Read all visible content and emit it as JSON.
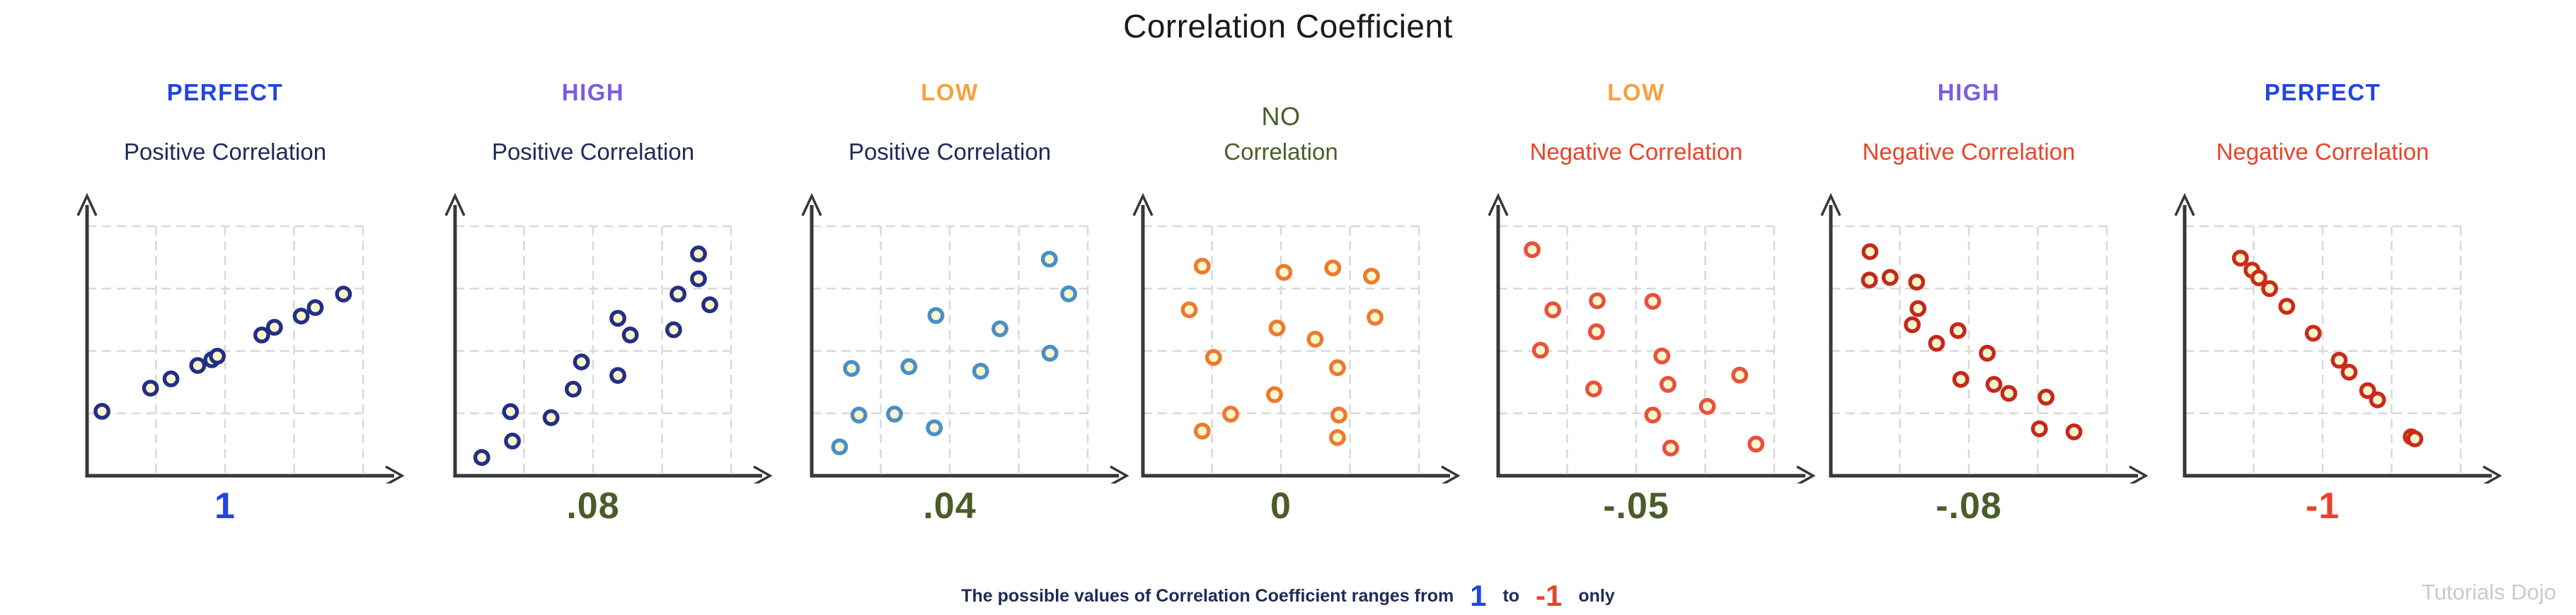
{
  "title": "Correlation Coefficient",
  "watermark": "Tutorials Dojo",
  "colors": {
    "title_text": "#1b1b1b",
    "accent_blue": "#2244e0",
    "accent_purple": "#7b5be8",
    "accent_orange": "#f5a23c",
    "accent_olive": "#4a5d28",
    "navy_text": "#1e2b58",
    "negative_red": "#e8442b",
    "dot_fill": "#faf7ce",
    "dot_navy": "#232f85",
    "dot_steel_blue": "#4a8fc5",
    "dot_orange": "#ec7a2e",
    "dot_tomato": "#e8513c",
    "dot_dark_red": "#c5281c",
    "dot_red": "#cb2a1a",
    "grid": "#d9d9d9",
    "axis": "#33383d",
    "watermark_gray": "#cacaca"
  },
  "footnote": {
    "prefix": "The possible values of Correlation Coefficient ranges from",
    "value_high": "1",
    "middle": "to",
    "value_low": "-1",
    "suffix": "only"
  },
  "chart_data": {
    "type": "scatter",
    "title": "Correlation Coefficient",
    "axes": {
      "x_range": [
        0,
        1
      ],
      "y_range": [
        0,
        1
      ],
      "tick_labels": "none",
      "grid": "4x4 dashed light-gray cells, axes drawn as black arrows"
    },
    "panels": [
      {
        "id": "perfect-positive",
        "label": "PERFECT",
        "label_color": "#2244e0",
        "label_bold": true,
        "subtitle": "Positive Correlation",
        "subtitle_color": "#1e2b58",
        "value": "1",
        "value_color": "#2244e0",
        "dot_color": "#232f85",
        "points": [
          [
            0.054,
            0.258
          ],
          [
            0.23,
            0.351
          ],
          [
            0.304,
            0.388
          ],
          [
            0.401,
            0.442
          ],
          [
            0.452,
            0.465
          ],
          [
            0.472,
            0.479
          ],
          [
            0.633,
            0.564
          ],
          [
            0.679,
            0.595
          ],
          [
            0.776,
            0.64
          ],
          [
            0.827,
            0.674
          ],
          [
            0.929,
            0.728
          ]
        ]
      },
      {
        "id": "high-positive",
        "label": "HIGH",
        "label_color": "#7b5be8",
        "label_bold": true,
        "subtitle": "Positive Correlation",
        "subtitle_color": "#1e2b58",
        "value": ".08",
        "value_color": "#4a5d28",
        "dot_color": "#232f85",
        "points": [
          [
            0.097,
            0.073
          ],
          [
            0.208,
            0.139
          ],
          [
            0.201,
            0.257
          ],
          [
            0.348,
            0.233
          ],
          [
            0.428,
            0.347
          ],
          [
            0.458,
            0.456
          ],
          [
            0.59,
            0.402
          ],
          [
            0.59,
            0.631
          ],
          [
            0.635,
            0.564
          ],
          [
            0.792,
            0.585
          ],
          [
            0.808,
            0.728
          ],
          [
            0.882,
            0.889
          ],
          [
            0.882,
            0.789
          ],
          [
            0.923,
            0.685
          ]
        ]
      },
      {
        "id": "low-positive",
        "label": "LOW",
        "label_color": "#f5a23c",
        "label_bold": true,
        "subtitle": "Positive Correlation",
        "subtitle_color": "#1e2b58",
        "value": ".04",
        "value_color": "#4a5d28",
        "dot_color": "#4a8fc5",
        "points": [
          [
            0.101,
            0.116
          ],
          [
            0.144,
            0.43
          ],
          [
            0.171,
            0.243
          ],
          [
            0.3,
            0.247
          ],
          [
            0.352,
            0.437
          ],
          [
            0.444,
            0.192
          ],
          [
            0.45,
            0.642
          ],
          [
            0.612,
            0.419
          ],
          [
            0.682,
            0.589
          ],
          [
            0.861,
            0.868
          ],
          [
            0.863,
            0.491
          ],
          [
            0.931,
            0.729
          ]
        ]
      },
      {
        "id": "no-correlation",
        "label": "NO",
        "label_color": "#4a5d28",
        "label_bold": false,
        "subtitle": "Correlation",
        "subtitle_color": "#4a5d28",
        "value": "0",
        "value_color": "#4a5d28",
        "dot_color": "#ec7a2e",
        "points": [
          [
            0.215,
            0.84
          ],
          [
            0.168,
            0.665
          ],
          [
            0.256,
            0.474
          ],
          [
            0.318,
            0.247
          ],
          [
            0.215,
            0.179
          ],
          [
            0.477,
            0.325
          ],
          [
            0.486,
            0.592
          ],
          [
            0.511,
            0.815
          ],
          [
            0.624,
            0.547
          ],
          [
            0.688,
            0.833
          ],
          [
            0.705,
            0.433
          ],
          [
            0.71,
            0.243
          ],
          [
            0.705,
            0.153
          ],
          [
            0.828,
            0.8
          ],
          [
            0.841,
            0.635
          ]
        ]
      },
      {
        "id": "low-negative",
        "label": "LOW",
        "label_color": "#f5a23c",
        "label_bold": true,
        "subtitle": "Negative Correlation",
        "subtitle_color": "#e8442b",
        "value": "-.05",
        "value_color": "#4a5d28",
        "dot_color": "#e8513c",
        "points": [
          [
            0.123,
            0.906
          ],
          [
            0.198,
            0.665
          ],
          [
            0.153,
            0.503
          ],
          [
            0.359,
            0.701
          ],
          [
            0.356,
            0.577
          ],
          [
            0.346,
            0.348
          ],
          [
            0.56,
            0.699
          ],
          [
            0.593,
            0.48
          ],
          [
            0.615,
            0.366
          ],
          [
            0.56,
            0.243
          ],
          [
            0.625,
            0.111
          ],
          [
            0.758,
            0.278
          ],
          [
            0.875,
            0.403
          ],
          [
            0.934,
            0.127
          ]
        ]
      },
      {
        "id": "high-negative",
        "label": "HIGH",
        "label_color": "#7b5be8",
        "label_bold": true,
        "subtitle": "Negative Correlation",
        "subtitle_color": "#e8442b",
        "value": "-.08",
        "value_color": "#4a5d28",
        "dot_color": "#c5281c",
        "points": [
          [
            0.142,
            0.898
          ],
          [
            0.14,
            0.784
          ],
          [
            0.215,
            0.795
          ],
          [
            0.311,
            0.776
          ],
          [
            0.316,
            0.67
          ],
          [
            0.295,
            0.605
          ],
          [
            0.383,
            0.531
          ],
          [
            0.461,
            0.582
          ],
          [
            0.471,
            0.386
          ],
          [
            0.567,
            0.491
          ],
          [
            0.591,
            0.366
          ],
          [
            0.645,
            0.33
          ],
          [
            0.78,
            0.315
          ],
          [
            0.756,
            0.188
          ],
          [
            0.881,
            0.176
          ]
        ]
      },
      {
        "id": "perfect-negative",
        "label": "PERFECT",
        "label_color": "#2244e0",
        "label_bold": true,
        "subtitle": "Negative Correlation",
        "subtitle_color": "#e8442b",
        "value": "-1",
        "value_color": "#e8442b",
        "dot_color": "#cb2a1a",
        "points": [
          [
            0.202,
            0.872
          ],
          [
            0.244,
            0.824
          ],
          [
            0.269,
            0.793
          ],
          [
            0.308,
            0.75
          ],
          [
            0.37,
            0.679
          ],
          [
            0.466,
            0.571
          ],
          [
            0.56,
            0.463
          ],
          [
            0.596,
            0.415
          ],
          [
            0.663,
            0.341
          ],
          [
            0.699,
            0.304
          ],
          [
            0.821,
            0.156
          ],
          [
            0.834,
            0.148
          ]
        ]
      }
    ]
  }
}
